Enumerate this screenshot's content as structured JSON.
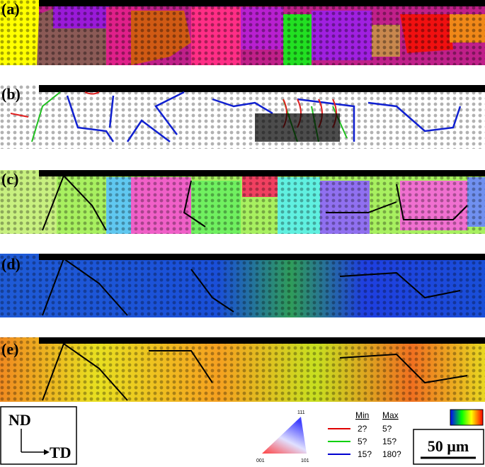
{
  "panels": [
    "(a)",
    "(b)",
    "(c)",
    "(d)",
    "(e)"
  ],
  "axes": {
    "vertical": "ND",
    "horizontal": "TD"
  },
  "ipf_triangle": {
    "top": "111",
    "left": "001",
    "right": "101"
  },
  "boundary_legend": {
    "header": [
      "Min",
      "Max"
    ],
    "rows": [
      [
        "2?",
        "5?"
      ],
      [
        "5?",
        "15?"
      ],
      [
        "15?",
        "180?"
      ]
    ]
  },
  "scale_bar": "50 µm"
}
